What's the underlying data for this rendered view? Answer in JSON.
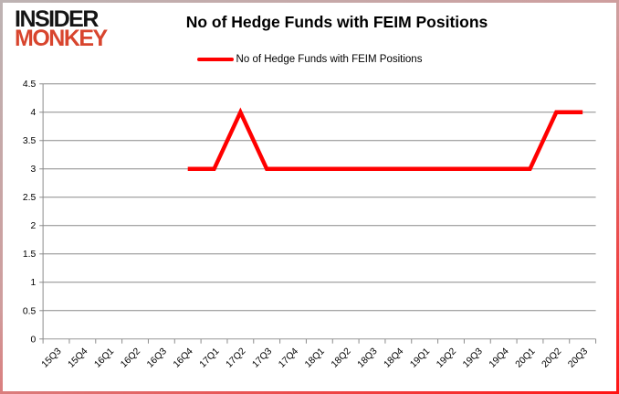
{
  "logo": {
    "line1": "INSIDER",
    "line2": "MONKEY"
  },
  "title": "No of Hedge Funds with FEIM Positions",
  "legend": {
    "label": "No of Hedge Funds with FEIM Positions",
    "color": "#ff0000"
  },
  "colors": {
    "series_line": "#ff0000",
    "grid": "#8a8a8a",
    "logo_black": "#151515",
    "logo_red": "#d8452e",
    "text": "#000000",
    "border_glow": "#ff1414"
  },
  "chart_data": {
    "type": "line",
    "title": "No of Hedge Funds with FEIM Positions",
    "categories": [
      "15Q3",
      "15Q4",
      "16Q1",
      "16Q2",
      "16Q3",
      "16Q4",
      "17Q1",
      "17Q2",
      "17Q3",
      "17Q4",
      "18Q1",
      "18Q2",
      "18Q3",
      "18Q4",
      "19Q1",
      "19Q2",
      "19Q3",
      "19Q4",
      "20Q1",
      "20Q2",
      "20Q3"
    ],
    "series": [
      {
        "name": "No of Hedge Funds with FEIM Positions",
        "color": "#ff0000",
        "values": [
          null,
          null,
          null,
          null,
          null,
          3,
          3,
          4,
          3,
          3,
          3,
          3,
          3,
          3,
          3,
          3,
          3,
          3,
          3,
          4,
          4
        ]
      }
    ],
    "xlabel": "",
    "ylabel": "",
    "ylim": [
      0,
      4.5
    ],
    "yticks": [
      0,
      0.5,
      1,
      1.5,
      2,
      2.5,
      3,
      3.5,
      4,
      4.5
    ],
    "grid": true,
    "legend_position": "top-center",
    "x_label_rotation": -45
  }
}
